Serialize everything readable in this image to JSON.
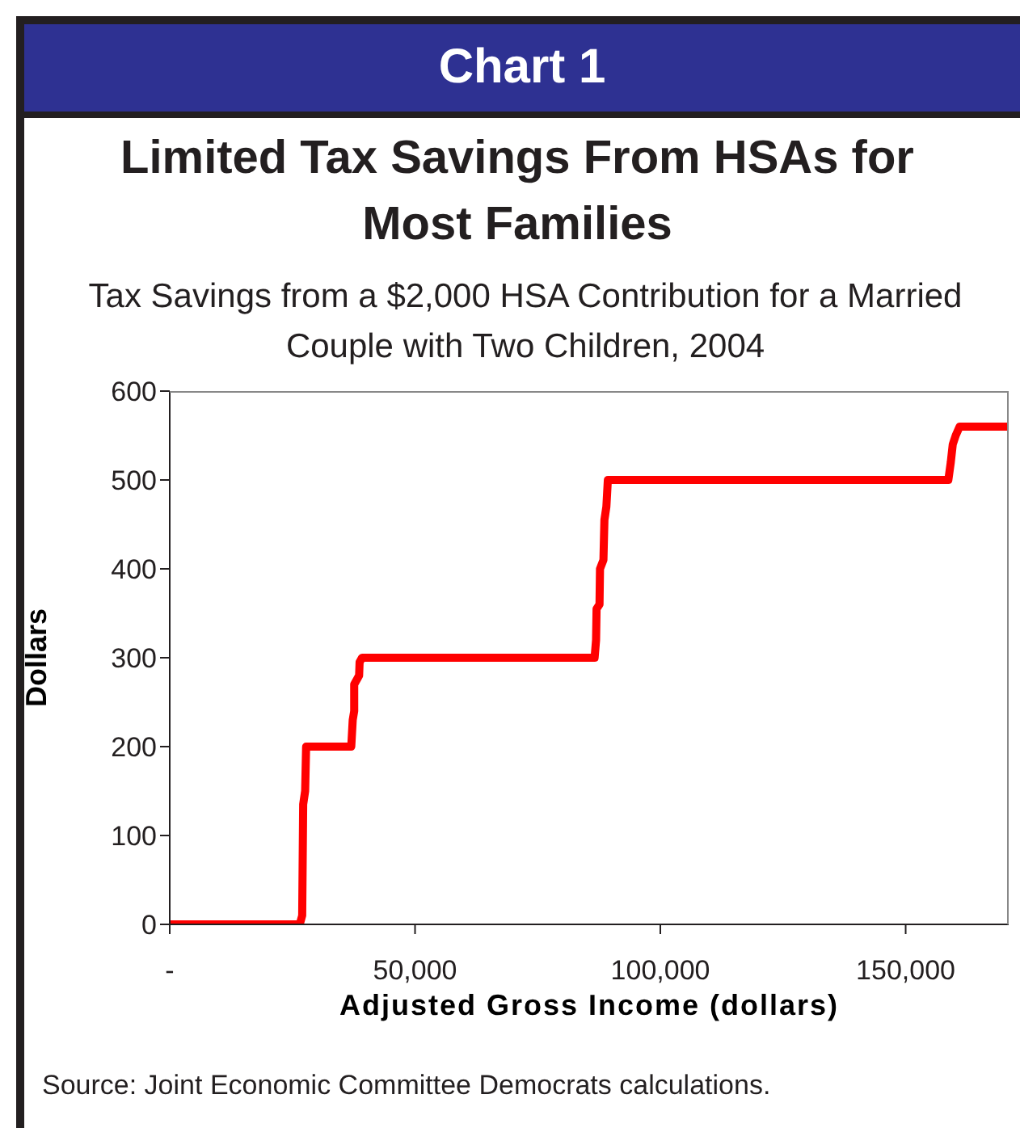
{
  "chart_data": {
    "type": "line",
    "title": "Limited Tax Savings From HSAs for Most Families",
    "subtitle": "Tax Savings from a $2,000 HSA Contribution for a Married Couple with Two Children, 2004",
    "xlabel": "Adjusted Gross Income (dollars)",
    "ylabel": "Dollars",
    "annotations": [
      "Chart 1",
      "Source: Joint Economic Committee Democrats calculations."
    ],
    "series": [
      {
        "color": "#ff0000",
        "x": [
          0,
          26500,
          27000,
          27200,
          27600,
          27800,
          37000,
          37300,
          37600,
          37600,
          38600,
          38700,
          39200,
          86600,
          86900,
          87000,
          87600,
          87700,
          88400,
          88600,
          89000,
          89300,
          158700,
          159200,
          159600,
          160200,
          161000,
          171000
        ],
        "values": [
          0,
          0,
          10,
          135,
          150,
          200,
          200,
          230,
          240,
          270,
          280,
          295,
          300,
          300,
          320,
          355,
          360,
          400,
          410,
          455,
          470,
          500,
          500,
          520,
          540,
          550,
          560,
          560
        ]
      }
    ],
    "xlim": [
      0,
      171000
    ],
    "xticks": [
      {
        "value": 0,
        "label": "-"
      },
      {
        "value": 50000,
        "label": "50,000"
      },
      {
        "value": 100000,
        "label": "100,000"
      },
      {
        "value": 150000,
        "label": "150,000"
      }
    ],
    "ylim": [
      0,
      600
    ],
    "yticks": [
      0,
      100,
      200,
      300,
      400,
      500,
      600
    ],
    "grid": false,
    "legend": false,
    "marker": "none",
    "line_style": "solid"
  }
}
